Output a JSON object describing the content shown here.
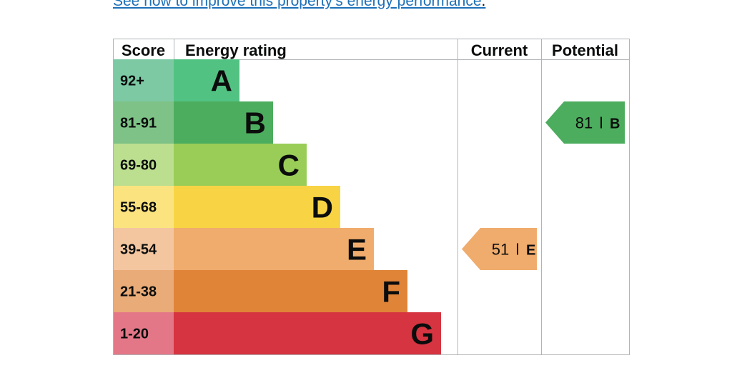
{
  "link": {
    "text": "See how to improve this property’s energy performance",
    "suffix": "."
  },
  "chart_data": {
    "type": "bar",
    "headers": {
      "score": "Score",
      "rating": "Energy rating",
      "current": "Current",
      "potential": "Potential"
    },
    "bands": [
      {
        "score": "92+",
        "letter": "A",
        "color": "#52c283",
        "score_bg": "#7cc9a4"
      },
      {
        "score": "81-91",
        "letter": "B",
        "color": "#4cad5e",
        "score_bg": "#7fc287"
      },
      {
        "score": "69-80",
        "letter": "C",
        "color": "#9acd57",
        "score_bg": "#bbde8f"
      },
      {
        "score": "55-68",
        "letter": "D",
        "color": "#f8d445",
        "score_bg": "#fbe47f"
      },
      {
        "score": "39-54",
        "letter": "E",
        "color": "#f0ac6d",
        "score_bg": "#f4c6a0"
      },
      {
        "score": "21-38",
        "letter": "F",
        "color": "#e08438",
        "score_bg": "#e9ab78"
      },
      {
        "score": "1-20",
        "letter": "G",
        "color": "#d53440",
        "score_bg": "#e37787"
      }
    ],
    "current": {
      "value": 51,
      "letter": "E",
      "color": "#f0ac6d"
    },
    "potential": {
      "value": 81,
      "letter": "B",
      "color": "#4cad5e"
    }
  }
}
